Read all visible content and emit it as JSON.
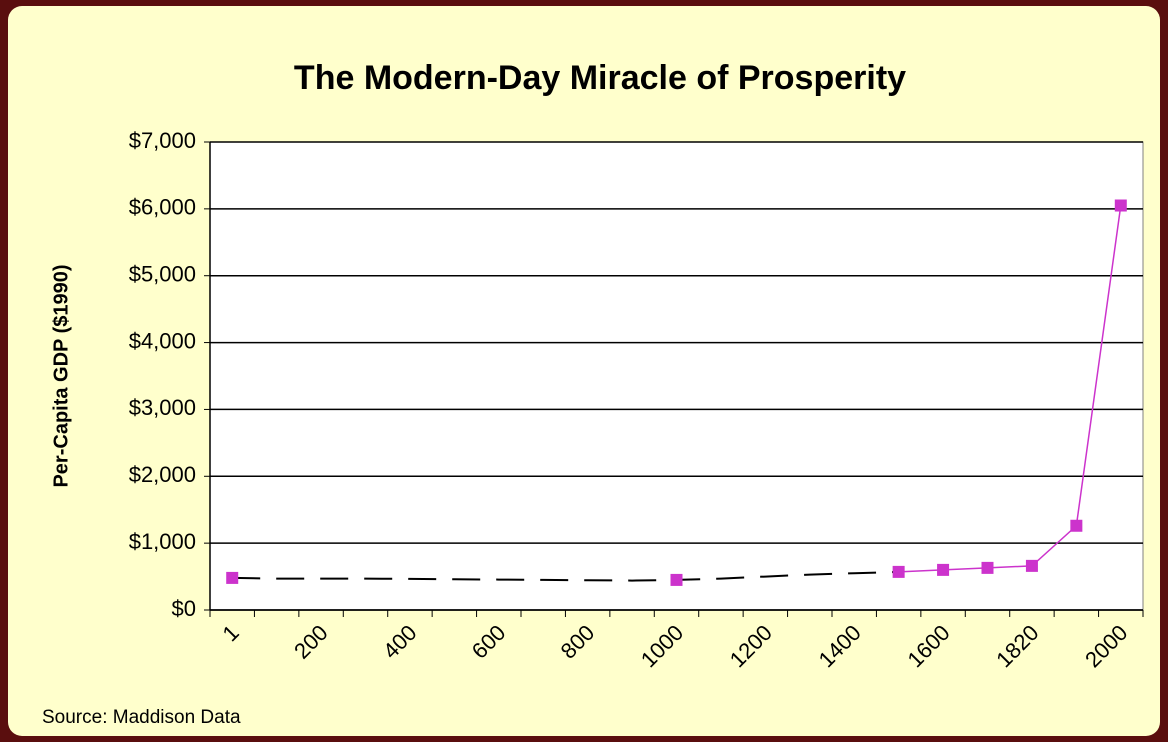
{
  "chart_data": {
    "type": "line",
    "title": "The Modern-Day Miracle of Prosperity",
    "y_label": "Per-Capita GDP ($1990)",
    "source": "Source: Maddison Data",
    "categories": [
      "1",
      null,
      "200",
      null,
      "400",
      null,
      "600",
      null,
      "800",
      null,
      "1000",
      null,
      "1200",
      null,
      "1400",
      null,
      "1600",
      null,
      "1820",
      null,
      "2000"
    ],
    "series": [
      {
        "color": "#000000",
        "dashed": true,
        "markers": false,
        "values": [
          480,
          470,
          470,
          470,
          465,
          460,
          455,
          450,
          445,
          440,
          450,
          470,
          500,
          530,
          550,
          570,
          null,
          null,
          null,
          null,
          null
        ]
      },
      {
        "color": "#cc33cc",
        "dashed": false,
        "markers": true,
        "values": [
          480,
          null,
          null,
          null,
          null,
          null,
          null,
          null,
          null,
          null,
          450,
          null,
          null,
          null,
          null,
          570,
          600,
          630,
          660,
          1260,
          6050
        ]
      }
    ],
    "ylim": [
      0,
      7000
    ],
    "yticks": [
      {
        "value": 0,
        "label": "$0"
      },
      {
        "value": 1000,
        "label": "$1,000"
      },
      {
        "value": 2000,
        "label": "$2,000"
      },
      {
        "value": 3000,
        "label": "$3,000"
      },
      {
        "value": 4000,
        "label": "$4,000"
      },
      {
        "value": 5000,
        "label": "$5,000"
      },
      {
        "value": 6000,
        "label": "$6,000"
      },
      {
        "value": 7000,
        "label": "$7,000"
      }
    ],
    "grid": true
  }
}
